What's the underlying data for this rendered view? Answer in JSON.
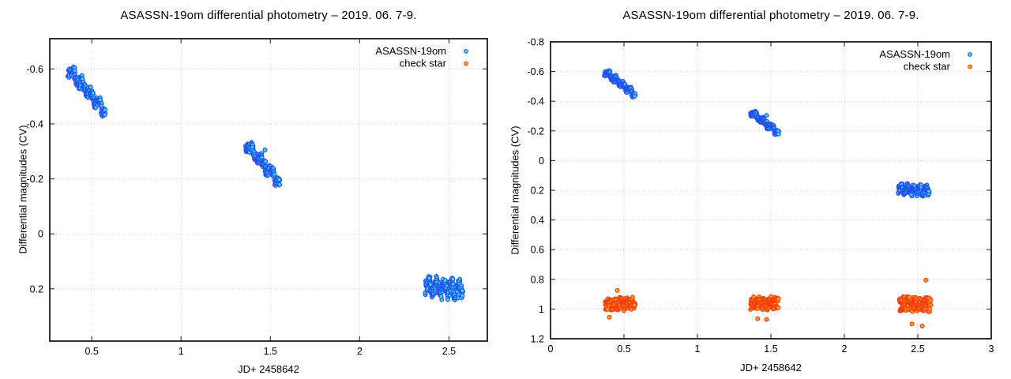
{
  "charts": [
    {
      "title": "ASASSN-19om differential photometry – 2019. 06. 7-9.",
      "xlabel": "JD+ 2458642",
      "ylabel": "Differential magnitudes (CV)",
      "x_range": [
        0.265,
        2.715
      ],
      "y_range_top_to_bottom": [
        -0.71,
        0.39
      ],
      "y_inverted": true,
      "grid": true,
      "legend_position": "top-right",
      "x_ticks": [
        {
          "v": 0.5,
          "label": "0.5"
        },
        {
          "v": 1,
          "label": "1"
        },
        {
          "v": 1.5,
          "label": "1.5"
        },
        {
          "v": 2,
          "label": "2"
        },
        {
          "v": 2.5,
          "label": "2.5"
        }
      ],
      "y_ticks": [
        {
          "v": -0.6,
          "label": "-0.6"
        },
        {
          "v": -0.4,
          "label": "-0.4"
        },
        {
          "v": -0.2,
          "label": "-0.2"
        },
        {
          "v": 0,
          "label": "0"
        },
        {
          "v": 0.2,
          "label": "0.2"
        }
      ],
      "series_shown": [
        "asassn-19om"
      ],
      "legend_entries": [
        "asassn-19om",
        "check-star"
      ]
    },
    {
      "title": "ASASSN-19om differential photometry – 2019. 06. 7-9.",
      "xlabel": "JD+ 2458642",
      "ylabel": "Differential magnitudes (CV)",
      "x_range": [
        0,
        3
      ],
      "y_range_top_to_bottom": [
        -0.8,
        1.2
      ],
      "y_inverted": true,
      "grid": true,
      "legend_position": "top-right",
      "x_ticks": [
        {
          "v": 0,
          "label": "0"
        },
        {
          "v": 0.5,
          "label": "0.5"
        },
        {
          "v": 1,
          "label": "1"
        },
        {
          "v": 1.5,
          "label": "1.5"
        },
        {
          "v": 2,
          "label": "2"
        },
        {
          "v": 2.5,
          "label": "2.5"
        },
        {
          "v": 3,
          "label": "3"
        }
      ],
      "y_ticks": [
        {
          "v": -0.8,
          "label": "-0.8"
        },
        {
          "v": -0.6,
          "label": "-0.6"
        },
        {
          "v": -0.4,
          "label": "-0.4"
        },
        {
          "v": -0.2,
          "label": "-0.2"
        },
        {
          "v": 0,
          "label": "0"
        },
        {
          "v": 0.2,
          "label": "0.2"
        },
        {
          "v": 0.4,
          "label": "0.4"
        },
        {
          "v": 0.6,
          "label": "0.6"
        },
        {
          "v": 0.8,
          "label": "0.8"
        },
        {
          "v": 1,
          "label": "1"
        },
        {
          "v": 1.2,
          "label": "1.2"
        }
      ],
      "series_shown": [
        "asassn-19om",
        "check-star"
      ],
      "legend_entries": [
        "asassn-19om",
        "check-star"
      ]
    }
  ],
  "chart_data": {
    "type": "scatter",
    "x_unit": "JD+ 2458642",
    "y_unit": "Differential magnitudes (CV)",
    "error_bar": 0.012,
    "series": [
      {
        "id": "asassn-19om",
        "name": "ASASSN-19om",
        "marker_fill": "#3ed6fb",
        "marker_edge": "#2251f0",
        "clusters": [
          {
            "x_min": 0.37,
            "x_max": 0.575,
            "y_start": -0.6,
            "y_end": -0.445,
            "wiggle": 0.022,
            "cycles": 4.2,
            "phase": 1.2,
            "jitter": 0.013,
            "n": 230,
            "seed": 101
          },
          {
            "x_min": 1.36,
            "x_max": 1.555,
            "y_start": -0.33,
            "y_end": -0.185,
            "wiggle": 0.02,
            "cycles": 3.6,
            "phase": 0.4,
            "jitter": 0.012,
            "n": 210,
            "seed": 102
          },
          {
            "x_min": 2.37,
            "x_max": 2.575,
            "y_start": 0.19,
            "y_end": 0.205,
            "wiggle": 0.028,
            "cycles": 4.8,
            "phase": 2.0,
            "jitter": 0.02,
            "n": 240,
            "seed": 103
          }
        ],
        "outliers": [
          [
            1.47,
            -0.305
          ]
        ]
      },
      {
        "id": "check-star",
        "name": "check star",
        "marker_fill": "#ffa81e",
        "marker_edge": "#f83c0e",
        "clusters": [
          {
            "x_min": 0.375,
            "x_max": 0.575,
            "y_start": 0.965,
            "y_end": 0.965,
            "wiggle": 0.012,
            "cycles": 5.0,
            "phase": 0.8,
            "jitter": 0.038,
            "n": 200,
            "seed": 201
          },
          {
            "x_min": 1.365,
            "x_max": 1.55,
            "y_start": 0.96,
            "y_end": 0.96,
            "wiggle": 0.012,
            "cycles": 5.0,
            "phase": 1.6,
            "jitter": 0.036,
            "n": 190,
            "seed": 202
          },
          {
            "x_min": 2.375,
            "x_max": 2.585,
            "y_start": 0.965,
            "y_end": 0.965,
            "wiggle": 0.015,
            "cycles": 5.5,
            "phase": 0.2,
            "jitter": 0.042,
            "n": 220,
            "seed": 203
          }
        ],
        "outliers": [
          [
            2.555,
            0.805
          ],
          [
            2.53,
            1.115
          ],
          [
            2.46,
            1.1
          ],
          [
            1.47,
            1.07
          ],
          [
            1.41,
            1.065
          ],
          [
            0.4,
            1.055
          ],
          [
            0.455,
            0.875
          ]
        ]
      }
    ]
  },
  "style": {
    "background": "#ffffff",
    "frame_color": "#1a1a1a",
    "grid_color": "#d9b9c6",
    "error_bar_color": "#bdbdbd",
    "text_color": "#000000"
  }
}
